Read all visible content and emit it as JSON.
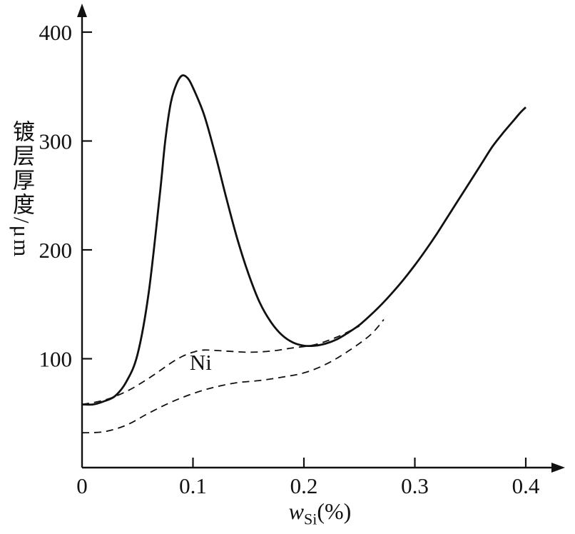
{
  "chart_data": {
    "type": "line",
    "title": "",
    "xlabel": "wSi(%)",
    "xlabel_parts": {
      "w": "w",
      "sub": "Si",
      "rest": "(%)"
    },
    "ylabel": "镀层厚度/μm",
    "xlim": [
      0,
      0.42
    ],
    "ylim": [
      0,
      420
    ],
    "x_ticks": [
      0,
      0.1,
      0.2,
      0.3,
      0.4
    ],
    "x_tick_labels": [
      "0",
      "0.1",
      "0.2",
      "0.3",
      "0.4"
    ],
    "y_ticks": [
      100,
      200,
      300,
      400
    ],
    "y_tick_labels": [
      "100",
      "200",
      "300",
      "400"
    ],
    "grid": false,
    "legend": "none",
    "line_color": "#111111",
    "annotations": [
      {
        "text": "Ni",
        "x": 0.107,
        "y": 90
      }
    ],
    "series": [
      {
        "id": "solid-curve",
        "name": "solid curve (coating thickness vs Si, sharp peak)",
        "style": "solid",
        "points": [
          [
            0,
            58
          ],
          [
            0.01,
            58
          ],
          [
            0.02,
            61
          ],
          [
            0.03,
            66
          ],
          [
            0.04,
            79
          ],
          [
            0.05,
            104
          ],
          [
            0.06,
            160
          ],
          [
            0.07,
            250
          ],
          [
            0.075,
            300
          ],
          [
            0.08,
            335
          ],
          [
            0.085,
            352
          ],
          [
            0.09,
            360
          ],
          [
            0.095,
            358
          ],
          [
            0.1,
            349
          ],
          [
            0.11,
            324
          ],
          [
            0.12,
            288
          ],
          [
            0.13,
            248
          ],
          [
            0.14,
            210
          ],
          [
            0.15,
            178
          ],
          [
            0.16,
            152
          ],
          [
            0.17,
            134
          ],
          [
            0.18,
            122
          ],
          [
            0.19,
            115
          ],
          [
            0.2,
            112
          ],
          [
            0.21,
            112
          ],
          [
            0.22,
            114
          ],
          [
            0.23,
            118
          ],
          [
            0.24,
            124
          ],
          [
            0.25,
            131
          ],
          [
            0.26,
            140
          ],
          [
            0.27,
            150
          ],
          [
            0.28,
            161
          ],
          [
            0.29,
            173
          ],
          [
            0.3,
            186
          ],
          [
            0.31,
            200
          ],
          [
            0.32,
            215
          ],
          [
            0.33,
            231
          ],
          [
            0.34,
            247
          ],
          [
            0.35,
            263
          ],
          [
            0.36,
            279
          ],
          [
            0.37,
            295
          ],
          [
            0.38,
            308
          ],
          [
            0.39,
            320
          ],
          [
            0.395,
            326
          ],
          [
            0.4,
            331
          ]
        ]
      },
      {
        "id": "dashed-upper",
        "name": "upper dashed curve (Ni)",
        "style": "dashed",
        "points": [
          [
            0,
            58
          ],
          [
            0.02,
            62
          ],
          [
            0.04,
            70
          ],
          [
            0.06,
            82
          ],
          [
            0.08,
            96
          ],
          [
            0.09,
            102
          ],
          [
            0.1,
            106
          ],
          [
            0.11,
            108
          ],
          [
            0.13,
            107
          ],
          [
            0.15,
            106
          ],
          [
            0.17,
            107
          ],
          [
            0.19,
            110
          ],
          [
            0.21,
            113
          ],
          [
            0.23,
            120
          ],
          [
            0.25,
            130
          ]
        ]
      },
      {
        "id": "dashed-lower",
        "name": "lower dashed curve (Ni)",
        "style": "dashed",
        "points": [
          [
            0,
            32
          ],
          [
            0.02,
            33
          ],
          [
            0.04,
            39
          ],
          [
            0.06,
            50
          ],
          [
            0.08,
            60
          ],
          [
            0.1,
            68
          ],
          [
            0.12,
            74
          ],
          [
            0.14,
            78
          ],
          [
            0.16,
            80
          ],
          [
            0.18,
            83
          ],
          [
            0.2,
            87
          ],
          [
            0.22,
            95
          ],
          [
            0.24,
            107
          ],
          [
            0.26,
            122
          ],
          [
            0.272,
            136
          ]
        ]
      }
    ]
  }
}
